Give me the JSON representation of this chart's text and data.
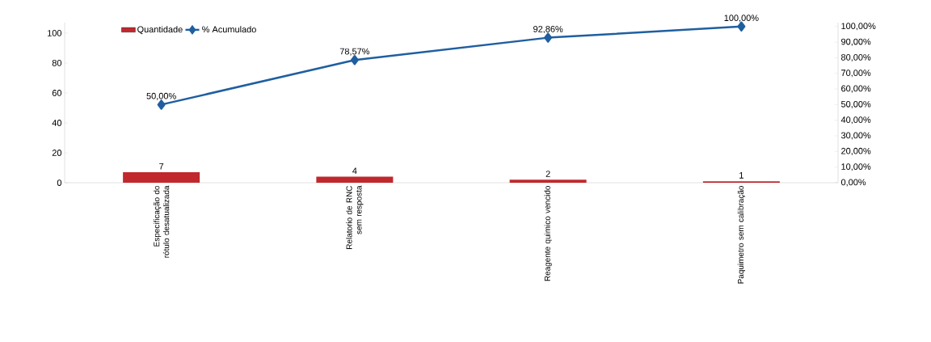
{
  "chart_data": {
    "type": "bar",
    "categories": [
      "Especificação do rótulo desatualizada",
      "Relatorio de RNC sem resposta",
      "Reagente quimico vencido",
      "Paquimetro sem calibração"
    ],
    "series": [
      {
        "name": "Quantidade",
        "color": "#c0282d",
        "values": [
          7,
          4,
          2,
          1
        ],
        "data_labels": true
      },
      {
        "name": "% Acumulado",
        "type": "line",
        "axis": "y2",
        "color": "#1f5fa0",
        "values": [
          50,
          78.57,
          92.86,
          100
        ],
        "value_labels": [
          "50,00%",
          "78,57%",
          "92,86%",
          "100,00%"
        ],
        "marker": "diamond"
      }
    ],
    "ylim": [
      0,
      107
    ],
    "yticks": [
      0,
      20,
      40,
      60,
      80,
      100
    ],
    "y2lim": [
      0,
      102.5
    ],
    "y2ticks": [
      {
        "value": 0,
        "label": "0,00%"
      },
      {
        "value": 10,
        "label": "10,00%"
      },
      {
        "value": 20,
        "label": "20,00%"
      },
      {
        "value": 30,
        "label": "30,00%"
      },
      {
        "value": 40,
        "label": "40,00%"
      },
      {
        "value": 50,
        "label": "50,00%"
      },
      {
        "value": 60,
        "label": "60,00%"
      },
      {
        "value": 70,
        "label": "70,00%"
      },
      {
        "value": 80,
        "label": "80,00%"
      },
      {
        "value": 90,
        "label": "90,00%"
      },
      {
        "value": 100,
        "label": "100,00%"
      }
    ],
    "legend": "top left",
    "grid": false
  }
}
